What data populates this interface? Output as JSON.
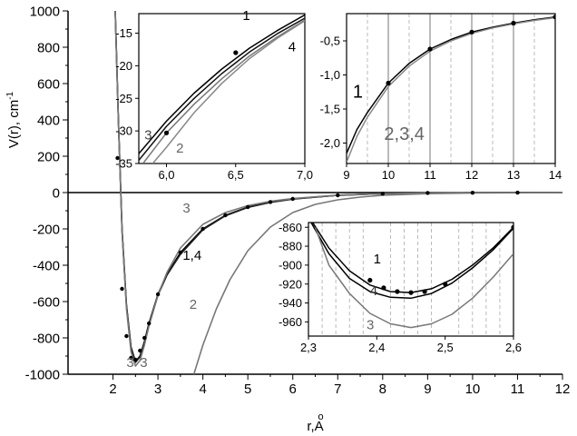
{
  "chart_data": [
    {
      "id": "main",
      "type": "line",
      "xlabel": "r,A",
      "xlabel_accent": "o",
      "ylabel": "V(r), cm",
      "ylabel_sup": "-1",
      "xlim": [
        1,
        12
      ],
      "ylim": [
        -1000,
        1000
      ],
      "xticks": [
        2,
        3,
        4,
        5,
        6,
        7,
        8,
        9,
        10,
        11,
        12
      ],
      "yticks": [
        -1000,
        -800,
        -600,
        -400,
        -200,
        0,
        200,
        400,
        600,
        800,
        1000
      ],
      "series": [
        {
          "name": "1",
          "color": "#000000",
          "x": [
            2.05,
            2.12,
            2.2,
            2.3,
            2.4,
            2.5,
            2.6,
            2.7,
            2.8,
            3.0,
            3.2,
            3.5,
            4.0,
            4.5,
            5.0,
            5.5,
            6.0,
            7.0,
            8.0,
            9.0,
            10.0,
            12.0
          ],
          "y": [
            1000,
            400,
            -200,
            -620,
            -850,
            -930,
            -900,
            -820,
            -720,
            -560,
            -450,
            -330,
            -200,
            -125,
            -80,
            -52,
            -35,
            -15,
            -6,
            -2.2,
            -1.1,
            -0.4
          ]
        },
        {
          "name": "4",
          "color": "#222222",
          "x": [
            2.05,
            2.12,
            2.2,
            2.3,
            2.4,
            2.5,
            2.6,
            2.7,
            2.8,
            3.0,
            3.2,
            3.5,
            4.0,
            4.5,
            5.0,
            5.5,
            6.0,
            7.0,
            8.0,
            9.0,
            10.0,
            12.0
          ],
          "y": [
            1000,
            400,
            -205,
            -625,
            -855,
            -935,
            -905,
            -825,
            -725,
            -565,
            -455,
            -340,
            -205,
            -128,
            -82,
            -54,
            -36,
            -15,
            -6,
            -2.3,
            -1.2,
            -0.4
          ]
        },
        {
          "name": "3",
          "color": "#777777",
          "x": [
            2.05,
            2.12,
            2.2,
            2.3,
            2.4,
            2.5,
            2.6,
            2.7,
            2.8,
            3.0,
            3.2,
            3.5,
            4.0,
            4.5,
            5.0,
            5.5,
            6.0,
            7.0,
            8.0,
            9.0,
            10.0,
            12.0
          ],
          "y": [
            1000,
            390,
            -215,
            -640,
            -875,
            -955,
            -925,
            -840,
            -735,
            -565,
            -440,
            -305,
            -175,
            -110,
            -72,
            -48,
            -33,
            -14,
            -6,
            -2.3,
            -1.2,
            -0.4
          ]
        },
        {
          "name": "2",
          "color": "#777777",
          "x": [
            3.8,
            4.0,
            4.3,
            4.6,
            5.0,
            5.5,
            6.0,
            6.5,
            7.0,
            7.5,
            8.0,
            9.0,
            10.0,
            12.0
          ],
          "y": [
            -1000,
            -840,
            -640,
            -480,
            -320,
            -190,
            -110,
            -65,
            -40,
            -25,
            -15,
            -6,
            -2.5,
            -0.5
          ]
        },
        {
          "name": "points",
          "color": "#000000",
          "markers": true,
          "line": false,
          "x": [
            2.1,
            2.2,
            2.3,
            2.4,
            2.5,
            2.6,
            2.7,
            2.8,
            3.0,
            3.5,
            4.0,
            4.5,
            5.0,
            5.5,
            6.0,
            7.0,
            8.0,
            9.0,
            10.0,
            11.0
          ],
          "y": [
            190,
            -530,
            -790,
            -910,
            -920,
            -870,
            -800,
            -720,
            -560,
            -330,
            -200,
            -125,
            -80,
            -52,
            -35,
            -15,
            -6,
            -2,
            -1,
            -0.5
          ]
        }
      ],
      "annotations": [
        {
          "text": "3",
          "x": 3.55,
          "y": -110,
          "color": "#666666"
        },
        {
          "text": "1,4",
          "x": 3.55,
          "y": -370,
          "color": "#000000"
        },
        {
          "text": "2",
          "x": 3.7,
          "y": -640,
          "color": "#666666"
        },
        {
          "text": "3",
          "x": 2.3,
          "y": -960,
          "color": "#666666"
        },
        {
          "text": "3",
          "x": 2.6,
          "y": -960,
          "color": "#666666"
        }
      ]
    },
    {
      "id": "inset1",
      "type": "line",
      "xlim": [
        5.8,
        7.0
      ],
      "ylim": [
        -35,
        -12
      ],
      "xticks": [
        6.0,
        6.5,
        7.0
      ],
      "xtick_labels": [
        "6,0",
        "6,5",
        "7,0"
      ],
      "yticks": [
        -35,
        -30,
        -25,
        -20,
        -15
      ],
      "series": [
        {
          "name": "1",
          "color": "#000000",
          "x": [
            5.8,
            6.0,
            6.2,
            6.4,
            6.6,
            6.8,
            7.0
          ],
          "y": [
            -33.5,
            -28.5,
            -24.2,
            -20.5,
            -17.3,
            -14.6,
            -12.2
          ]
        },
        {
          "name": "4",
          "color": "#111111",
          "x": [
            5.8,
            6.0,
            6.2,
            6.4,
            6.6,
            6.8,
            7.0
          ],
          "y": [
            -34.5,
            -29.3,
            -25.0,
            -21.2,
            -17.9,
            -15.1,
            -12.7
          ]
        },
        {
          "name": "3",
          "color": "#777777",
          "x": [
            5.83,
            6.0,
            6.2,
            6.4,
            6.6,
            6.8,
            7.0
          ],
          "y": [
            -35.0,
            -30.3,
            -25.9,
            -22.0,
            -18.5,
            -15.6,
            -13.0
          ]
        },
        {
          "name": "2",
          "color": "#888888",
          "x": [
            5.9,
            6.0,
            6.2,
            6.4,
            6.6,
            6.8,
            7.0
          ],
          "y": [
            -35.0,
            -32.5,
            -27.2,
            -22.7,
            -18.9,
            -15.8,
            -13.1
          ]
        },
        {
          "name": "points",
          "color": "#000000",
          "markers": true,
          "line": false,
          "x": [
            6.0,
            6.5
          ],
          "y": [
            -30.3,
            -18.0
          ]
        }
      ],
      "annotations": [
        {
          "text": "1",
          "x": 6.55,
          "y": -13.0,
          "color": "#000000"
        },
        {
          "text": "4",
          "x": 6.88,
          "y": -17.8,
          "color": "#000000"
        },
        {
          "text": "3",
          "x": 5.84,
          "y": -31.3,
          "color": "#444444"
        },
        {
          "text": "2",
          "x": 6.07,
          "y": -33.3,
          "color": "#666666"
        }
      ]
    },
    {
      "id": "inset2",
      "type": "line",
      "xlim": [
        9,
        14
      ],
      "ylim": [
        -2.3,
        -0.1
      ],
      "xticks": [
        9,
        10,
        11,
        12,
        13,
        14
      ],
      "yticks": [
        -2.0,
        -1.5,
        -1.0,
        -0.5
      ],
      "ytick_labels": [
        "-2,0",
        "-1,5",
        "-1,0",
        "-0,5"
      ],
      "grid_x": [
        9.5,
        10,
        10.5,
        11,
        11.5,
        12,
        12.5,
        13,
        13.5
      ],
      "series": [
        {
          "name": "1",
          "color": "#000000",
          "x": [
            9.0,
            9.25,
            9.5,
            10.0,
            10.5,
            11.0,
            11.5,
            12.0,
            12.5,
            13.0,
            13.5,
            14.0
          ],
          "y": [
            -2.15,
            -1.8,
            -1.55,
            -1.12,
            -0.83,
            -0.62,
            -0.48,
            -0.37,
            -0.3,
            -0.24,
            -0.19,
            -0.15
          ]
        },
        {
          "name": "2,3,4",
          "color": "#888888",
          "x": [
            9.0,
            9.25,
            9.5,
            10.0,
            10.5,
            11.0,
            11.5,
            12.0,
            12.5,
            13.0,
            13.5,
            14.0
          ],
          "y": [
            -2.28,
            -1.9,
            -1.62,
            -1.17,
            -0.87,
            -0.65,
            -0.5,
            -0.39,
            -0.31,
            -0.25,
            -0.2,
            -0.16
          ]
        },
        {
          "name": "points",
          "color": "#000000",
          "markers": true,
          "line": false,
          "x": [
            10,
            11,
            12,
            13,
            14
          ],
          "y": [
            -1.12,
            -0.62,
            -0.37,
            -0.24,
            -0.15
          ]
        }
      ],
      "annotations": [
        {
          "text": "1",
          "x": 9.15,
          "y": -1.33,
          "color": "#000000"
        },
        {
          "text": "2,3,4",
          "x": 9.9,
          "y": -1.95,
          "color": "#666666"
        }
      ]
    },
    {
      "id": "inset3",
      "type": "line",
      "xlim": [
        2.3,
        2.6
      ],
      "ylim": [
        -975,
        -855
      ],
      "xticks": [
        2.3,
        2.4,
        2.5,
        2.6
      ],
      "xtick_labels": [
        "2,3",
        "2,4",
        "2,5",
        "2,6"
      ],
      "yticks": [
        -960,
        -940,
        -920,
        -900,
        -880,
        -860
      ],
      "grid_x": [
        2.32,
        2.34,
        2.36,
        2.38,
        2.42,
        2.44,
        2.46,
        2.48,
        2.52,
        2.54,
        2.56,
        2.58
      ],
      "series": [
        {
          "name": "1",
          "color": "#000000",
          "x": [
            2.3,
            2.33,
            2.36,
            2.39,
            2.42,
            2.45,
            2.48,
            2.51,
            2.54,
            2.57,
            2.6
          ],
          "y": [
            -848,
            -882,
            -906,
            -921,
            -928,
            -929,
            -925,
            -915,
            -900,
            -882,
            -860
          ]
        },
        {
          "name": "4",
          "color": "#000000",
          "x": [
            2.3,
            2.33,
            2.36,
            2.39,
            2.42,
            2.45,
            2.48,
            2.51,
            2.54,
            2.57,
            2.6
          ],
          "y": [
            -850,
            -888,
            -914,
            -928,
            -934,
            -935,
            -930,
            -919,
            -903,
            -884,
            -861
          ]
        },
        {
          "name": "3",
          "color": "#777777",
          "x": [
            2.31,
            2.33,
            2.36,
            2.39,
            2.42,
            2.45,
            2.48,
            2.51,
            2.54,
            2.57,
            2.6
          ],
          "y": [
            -860,
            -900,
            -930,
            -951,
            -962,
            -966,
            -962,
            -952,
            -935,
            -913,
            -888
          ]
        },
        {
          "name": "points",
          "color": "#000000",
          "markers": true,
          "line": false,
          "x": [
            2.39,
            2.41,
            2.43,
            2.45,
            2.47,
            2.5,
            2.6
          ],
          "y": [
            -916,
            -924,
            -928,
            -929,
            -928,
            -920,
            -860
          ]
        }
      ],
      "annotations": [
        {
          "text": "1",
          "x": 2.395,
          "y": -898,
          "color": "#000000"
        },
        {
          "text": "4",
          "x": 2.39,
          "y": -932,
          "color": "#333333"
        },
        {
          "text": "3",
          "x": 2.385,
          "y": -968,
          "color": "#666666"
        }
      ]
    }
  ]
}
